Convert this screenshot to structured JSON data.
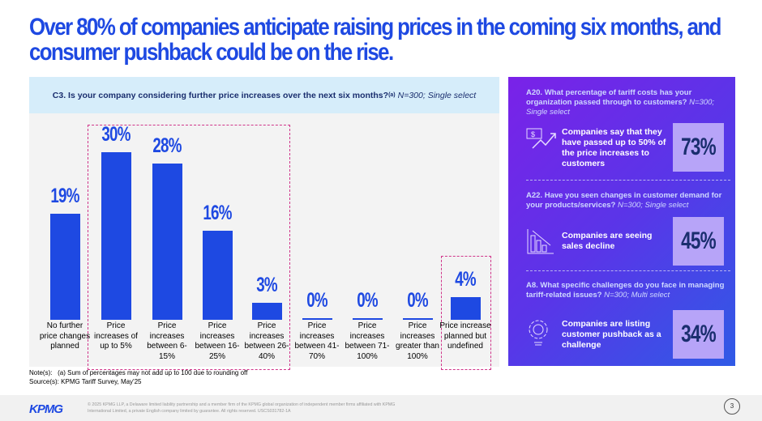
{
  "title": "Over 80% of companies anticipate raising prices in the coming six months, and consumer pushback could be on the rise.",
  "left_panel": {
    "question": "C3. Is your company considering further price increases over the next six months?",
    "superscript": "(a)",
    "sample": "N=300; Single select"
  },
  "chart_data": {
    "type": "bar",
    "categories": [
      "No further price changes planned",
      "Price increases of up to 5%",
      "Price increases between 6-15%",
      "Price increases between 16-25%",
      "Price increases between 26-40%",
      "Price increases between 41-70%",
      "Price increases between 71-100%",
      "Price increases greater than 100%",
      "Price increase planned but undefined"
    ],
    "values": [
      19,
      30,
      28,
      16,
      3,
      0,
      0,
      0,
      4
    ],
    "labels": [
      "19%",
      "30%",
      "28%",
      "16%",
      "3%",
      "0%",
      "0%",
      "0%",
      "4%"
    ],
    "bar_color": "#1e49e2",
    "highlight_color": "#d0358a"
  },
  "notes": {
    "note_label": "Note(s):",
    "note_text": "(a) Sum of percentages may not add up to 100 due to rounding off",
    "source_label": "Source(s):",
    "source_text": "KPMG Tariff Survey, May'25"
  },
  "right_panel": [
    {
      "question": "A20. What percentage of tariff costs has your organization passed through to customers?",
      "sample": "N=300; Single select",
      "stat": "Companies say that they have passed up to 50% of the price increases to customers",
      "value": "73%",
      "icon": "price-trend-icon"
    },
    {
      "question": "A22. Have you seen changes in customer demand for your products/services?",
      "sample": "N=300; Single select",
      "stat": "Companies are seeing sales decline",
      "value": "45%",
      "icon": "declining-bar-chart-icon"
    },
    {
      "question": "A8. What specific challenges do you face in managing tariff-related issues?",
      "sample": "N=300; Multi select",
      "stat": "Companies are listing customer pushback as a challenge",
      "value": "34%",
      "icon": "gear-bulb-icon"
    }
  ],
  "footer": {
    "logo": "KPMG",
    "legal": "© 2025 KPMG LLP, a Delaware limited liability partnership and a member firm of the KPMG global organization of independent member firms affiliated with KPMG International Limited, a private English company limited by guarantee. All rights reserved. USCS031782-1A",
    "page": "3"
  }
}
